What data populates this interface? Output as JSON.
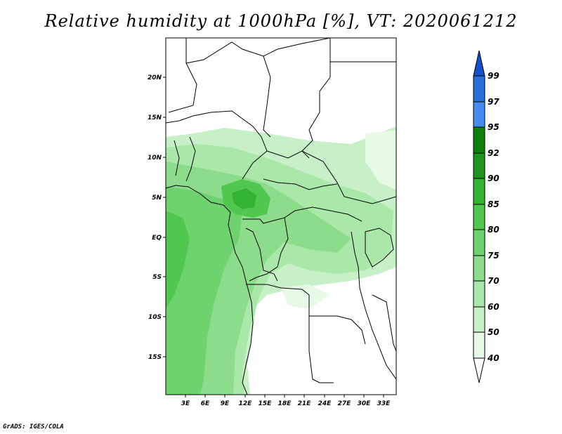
{
  "title": "Relative humidity at 1000hPa [%], VT: 2020061212",
  "credit": "GrADS: IGES/COLA",
  "map": {
    "lat_labels": [
      "20N",
      "15N",
      "10N",
      "5N",
      "EQ",
      "5S",
      "10S",
      "15S"
    ],
    "lon_labels": [
      "3E",
      "6E",
      "9E",
      "12E",
      "15E",
      "18E",
      "21E",
      "24E",
      "27E",
      "30E",
      "33E"
    ]
  },
  "colorbar": {
    "labels": [
      "40",
      "50",
      "60",
      "70",
      "75",
      "80",
      "85",
      "90",
      "92",
      "95",
      "97",
      "99"
    ],
    "colors": [
      "#ffffff",
      "#e6fae6",
      "#c8f0c8",
      "#aae8aa",
      "#8cdc8c",
      "#6ed26e",
      "#50c850",
      "#32b432",
      "#1e961e",
      "#0a820a",
      "#468cf0",
      "#2870dc",
      "#1450c8"
    ]
  }
}
